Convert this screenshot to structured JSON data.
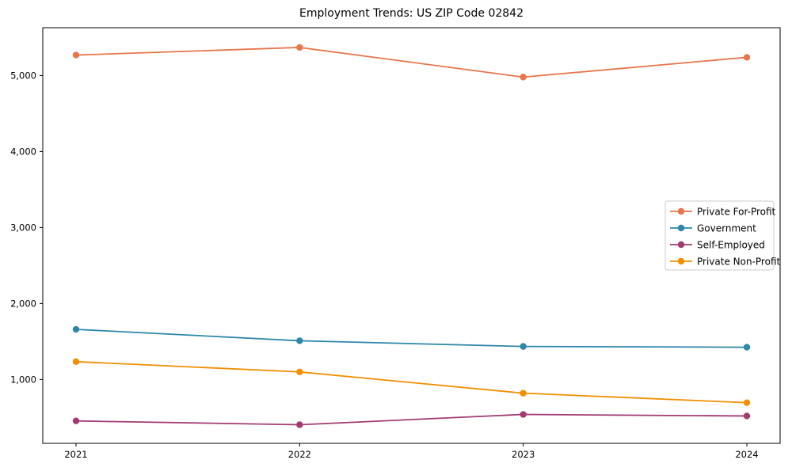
{
  "figure": {
    "title": "Employment Trends: US ZIP Code 02842"
  },
  "chart_data": {
    "type": "line",
    "title": "Employment Trends: US ZIP Code 02842",
    "categories": [
      "2021",
      "2022",
      "2023",
      "2024"
    ],
    "series": [
      {
        "name": "Private For-Profit",
        "color": "#E8764C",
        "values": [
          5270,
          5370,
          4980,
          5240
        ]
      },
      {
        "name": "Government",
        "color": "#2E86AB",
        "values": [
          1660,
          1510,
          1435,
          1425
        ]
      },
      {
        "name": "Self-Employed",
        "color": "#A23B72",
        "values": [
          455,
          405,
          540,
          520
        ]
      },
      {
        "name": "Private Non-Profit",
        "color": "#F18F01",
        "values": [
          1235,
          1100,
          820,
          695
        ]
      }
    ],
    "xlabel": "",
    "ylabel": "",
    "ylim": [
      160,
      5630
    ],
    "yticks": [
      1000,
      2000,
      3000,
      4000,
      5000
    ],
    "ytick_labels": [
      "1,000",
      "2,000",
      "3,000",
      "4,000",
      "5,000"
    ],
    "grid": false,
    "marker": "circle",
    "line_width": 1.8,
    "marker_radius": 4.2,
    "legend": {
      "position": "center-right",
      "items": [
        "Private For-Profit",
        "Government",
        "Self-Employed",
        "Private Non-Profit"
      ]
    },
    "frame_color": "#000000",
    "background_color": "#ffffff",
    "legend_border_color": "#cccccc"
  }
}
